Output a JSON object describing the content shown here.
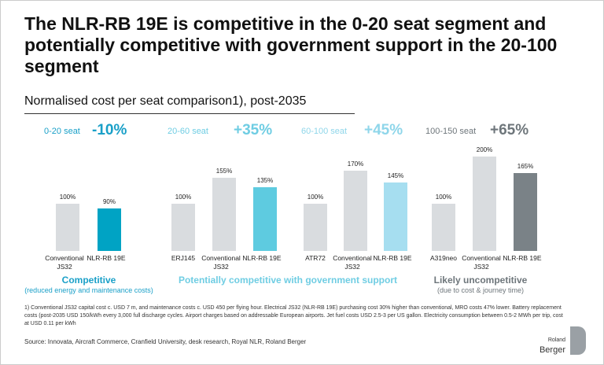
{
  "title": "The NLR-RB 19E is competitive in the 0-20 seat segment and potentially competitive with government support in the 20-100 segment",
  "subtitle": "Normalised cost per seat comparison1), post-2035",
  "chart_data": [
    {
      "type": "bar",
      "segment": "0-20 seat",
      "delta": "-10%",
      "accent": "#1aa0c8",
      "categories": [
        "Conventional JS32",
        "NLR-RB 19E"
      ],
      "values": [
        100,
        90
      ],
      "value_labels": [
        "100%",
        "90%"
      ],
      "colors": [
        "#d9dcdf",
        "#00a3c4"
      ]
    },
    {
      "type": "bar",
      "segment": "20-60 seat",
      "delta": "+35%",
      "accent": "#6fcde3",
      "categories": [
        "ERJ145",
        "Conventional JS32",
        "NLR-RB 19E"
      ],
      "values": [
        100,
        155,
        135
      ],
      "value_labels": [
        "100%",
        "155%",
        "135%"
      ],
      "colors": [
        "#d9dcdf",
        "#d9dcdf",
        "#5ecbe0"
      ]
    },
    {
      "type": "bar",
      "segment": "60-100 seat",
      "delta": "+45%",
      "accent": "#8fd6ea",
      "categories": [
        "ATR72",
        "Conventional JS32",
        "NLR-RB 19E"
      ],
      "values": [
        100,
        170,
        145
      ],
      "value_labels": [
        "100%",
        "170%",
        "145%"
      ],
      "colors": [
        "#d9dcdf",
        "#d9dcdf",
        "#a6def0"
      ]
    },
    {
      "type": "bar",
      "segment": "100-150 seat",
      "delta": "+65%",
      "accent": "#6e767b",
      "categories": [
        "A319neo",
        "Conventional JS32",
        "NLR-RB 19E"
      ],
      "values": [
        100,
        200,
        165
      ],
      "value_labels": [
        "100%",
        "200%",
        "165%"
      ],
      "colors": [
        "#d9dcdf",
        "#d9dcdf",
        "#7a8287"
      ]
    }
  ],
  "verdicts": [
    {
      "text": "Competitive",
      "note": "(reduced energy and maintenance costs)",
      "color": "#1aa0c8"
    },
    {
      "text": "Potentially competitive with government support",
      "color": "#6fcde3"
    },
    {
      "text": "Likely uncompetitive",
      "note": "(due to cost & journey time)",
      "color": "#6e767b"
    }
  ],
  "footnote": "1) Conventional JS32 capital cost c. USD 7 m, and maintenance costs c. USD 450 per flying hour. Electrical JS32 (NLR-RB 19E) purchasing cost 30% higher than conventional, MRO costs 47% lower. Battery replacement costs (post-2035 USD 150/kWh every 3,000 full discharge cycles. Airport charges based on addressable European airports. Jet fuel costs USD 2.5-3 per US gallon. Electricity consumption between 0.5-2 MWh per trip, cost at USD 0.11 per kWh",
  "source": "Source: Innovata, Aircraft Commerce, Cranfield University, desk research, Royal NLR, Roland Berger",
  "logo": {
    "small": "Roland",
    "big": "Berger"
  }
}
